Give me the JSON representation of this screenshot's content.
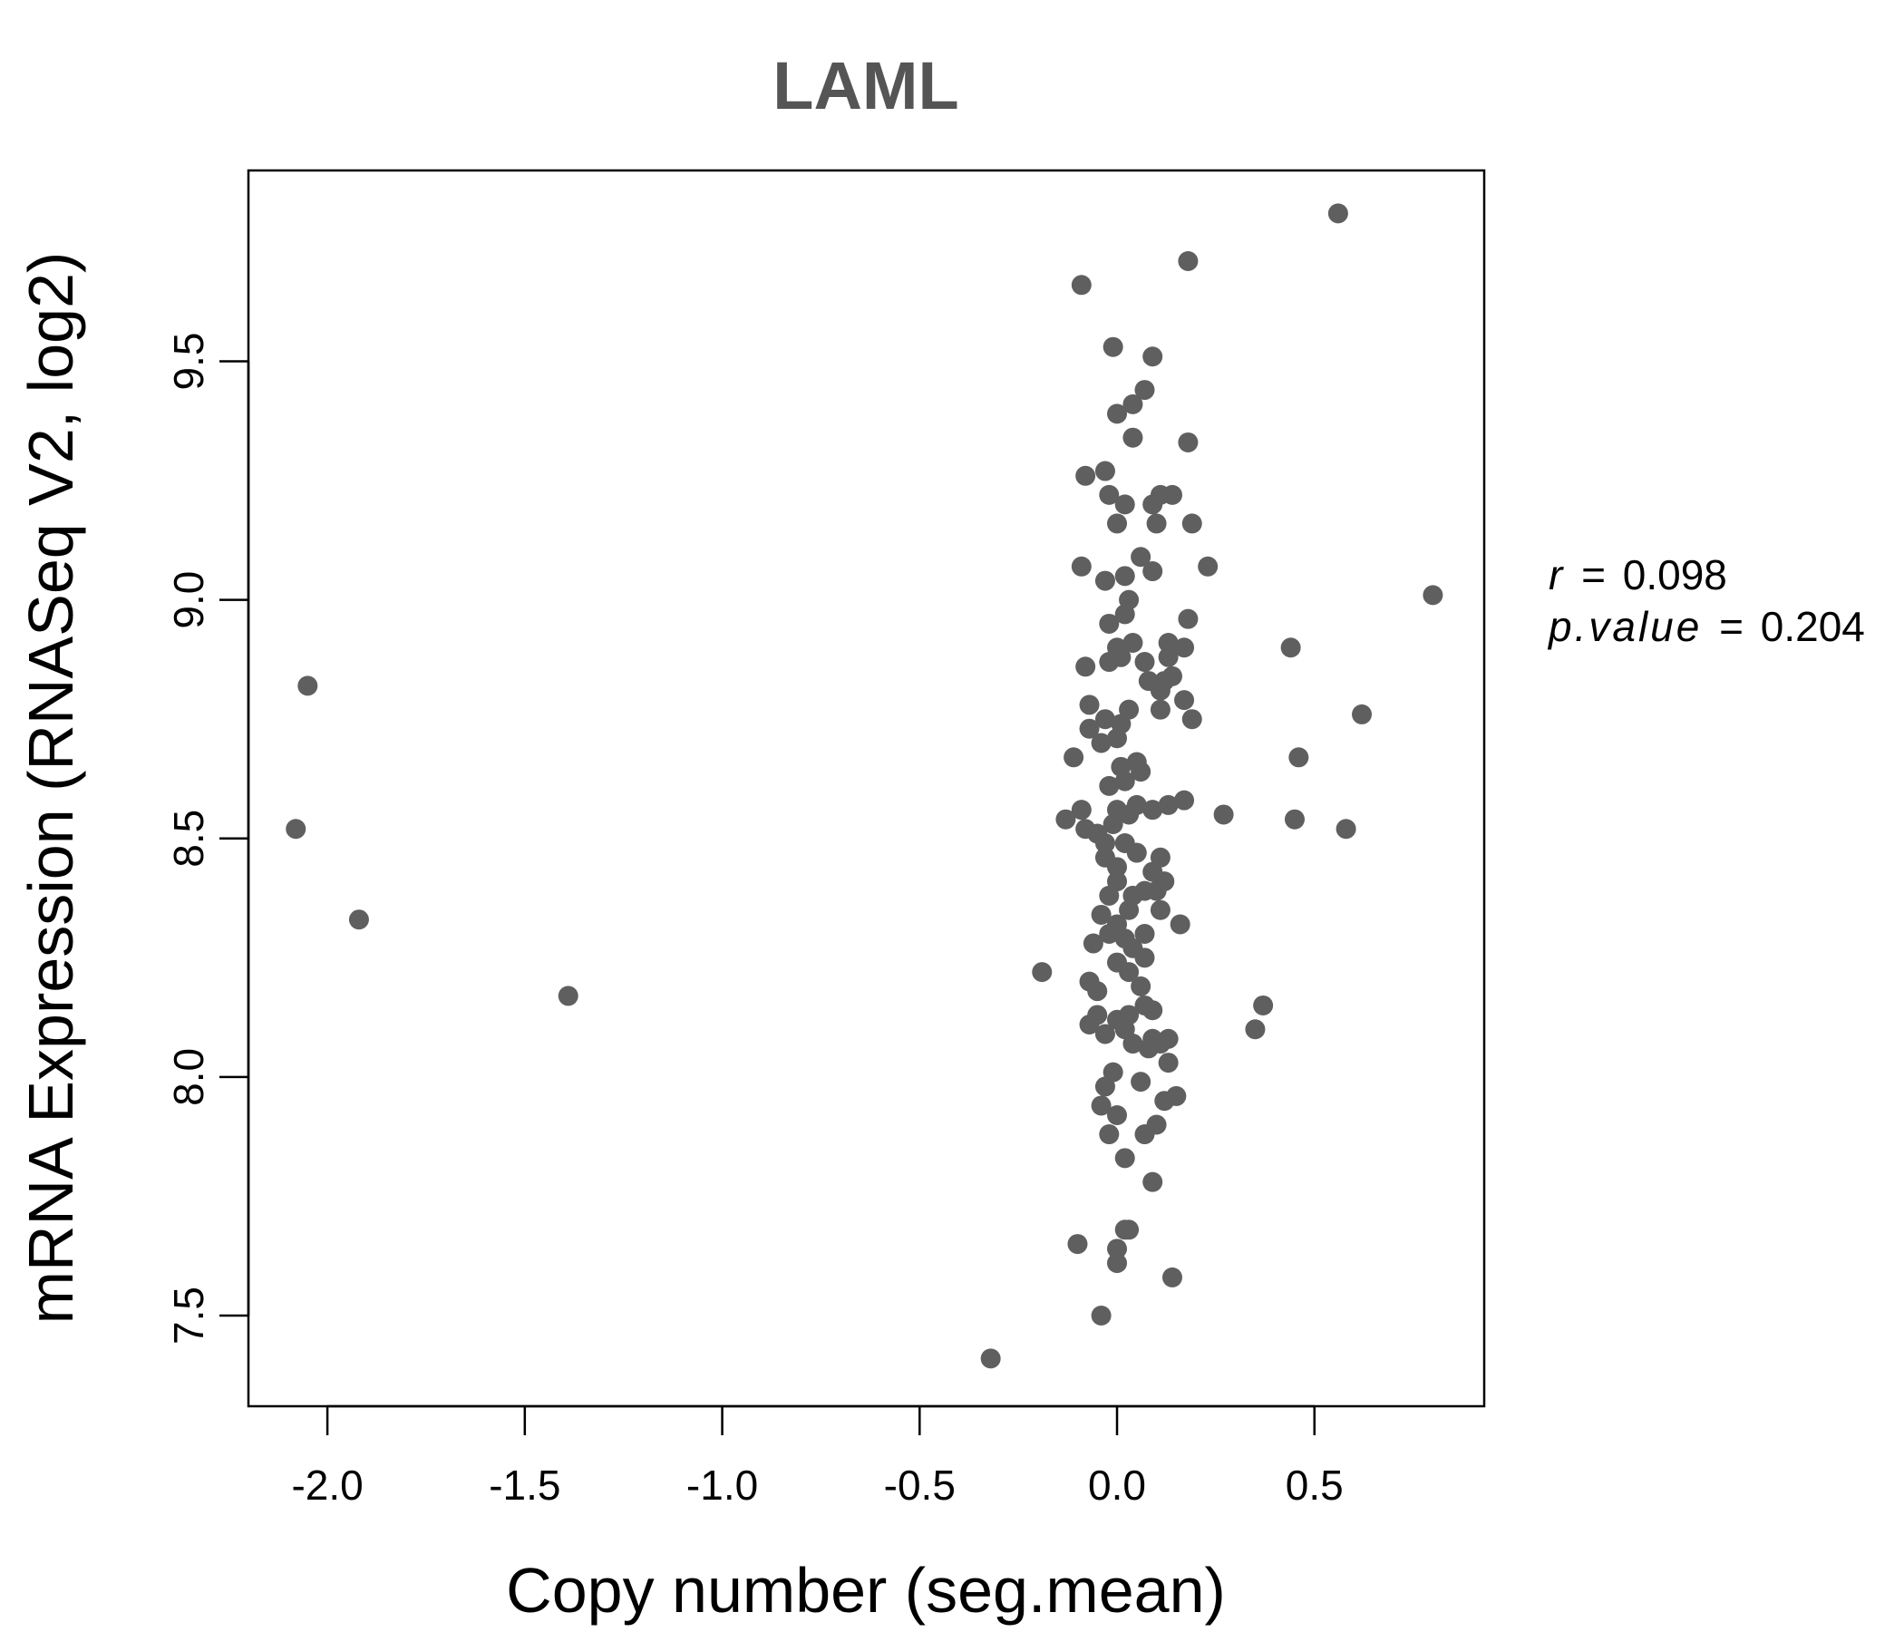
{
  "chart_data": {
    "type": "scatter",
    "title": "LAML",
    "xlabel": "Copy number (seg.mean)",
    "ylabel": "mRNA Expression (RNASeq V2, log2)",
    "xlim": [
      -2.2,
      0.93
    ],
    "ylim": [
      7.31,
      9.9
    ],
    "xticks": [
      -2.0,
      -1.5,
      -1.0,
      -0.5,
      0.0,
      0.5
    ],
    "xtick_labels": [
      "-2.0",
      "-1.5",
      "-1.0",
      "-0.5",
      "0.0",
      "0.5"
    ],
    "yticks": [
      7.5,
      8.0,
      8.5,
      9.0,
      9.5
    ],
    "ytick_labels": [
      "7.5",
      "8.0",
      "8.5",
      "9.0",
      "9.5"
    ],
    "grid": false,
    "point_color": "#5f5f5f",
    "stats": {
      "r_label": "r",
      "r_value": "0.098",
      "p_label": "p.value",
      "p_value": "0.204"
    },
    "points": [
      [
        -2.05,
        8.82
      ],
      [
        -2.08,
        8.52
      ],
      [
        -1.92,
        8.33
      ],
      [
        -1.39,
        8.17
      ],
      [
        -0.32,
        7.41
      ],
      [
        -0.19,
        8.22
      ],
      [
        -0.04,
        7.5
      ],
      [
        -0.1,
        7.65
      ],
      [
        0.0,
        7.61
      ],
      [
        0.0,
        7.64
      ],
      [
        0.02,
        7.68
      ],
      [
        0.03,
        7.68
      ],
      [
        0.14,
        7.58
      ],
      [
        0.09,
        7.78
      ],
      [
        0.02,
        7.83
      ],
      [
        -0.02,
        7.88
      ],
      [
        0.07,
        7.88
      ],
      [
        0.1,
        7.9
      ],
      [
        -0.04,
        7.94
      ],
      [
        0.0,
        7.92
      ],
      [
        0.12,
        7.95
      ],
      [
        0.15,
        7.96
      ],
      [
        0.06,
        7.99
      ],
      [
        -0.03,
        7.98
      ],
      [
        -0.01,
        8.01
      ],
      [
        0.13,
        8.03
      ],
      [
        0.08,
        8.06
      ],
      [
        0.04,
        8.07
      ],
      [
        0.09,
        8.08
      ],
      [
        0.11,
        8.07
      ],
      [
        0.13,
        8.08
      ],
      [
        -0.03,
        8.09
      ],
      [
        0.02,
        8.1
      ],
      [
        -0.07,
        8.11
      ],
      [
        0.0,
        8.12
      ],
      [
        -0.05,
        8.13
      ],
      [
        0.03,
        8.13
      ],
      [
        0.07,
        8.15
      ],
      [
        0.09,
        8.14
      ],
      [
        0.35,
        8.1
      ],
      [
        0.37,
        8.15
      ],
      [
        -0.07,
        8.2
      ],
      [
        -0.05,
        8.18
      ],
      [
        0.03,
        8.22
      ],
      [
        0.06,
        8.19
      ],
      [
        0.0,
        8.24
      ],
      [
        0.04,
        8.27
      ],
      [
        0.07,
        8.25
      ],
      [
        -0.06,
        8.28
      ],
      [
        -0.02,
        8.3
      ],
      [
        0.02,
        8.29
      ],
      [
        0.07,
        8.3
      ],
      [
        0.0,
        8.32
      ],
      [
        -0.04,
        8.34
      ],
      [
        0.03,
        8.35
      ],
      [
        0.11,
        8.35
      ],
      [
        0.16,
        8.32
      ],
      [
        -0.02,
        8.38
      ],
      [
        0.0,
        8.41
      ],
      [
        0.04,
        8.38
      ],
      [
        0.07,
        8.39
      ],
      [
        0.1,
        8.39
      ],
      [
        0.12,
        8.41
      ],
      [
        0.09,
        8.43
      ],
      [
        0.11,
        8.46
      ],
      [
        0.05,
        8.47
      ],
      [
        -0.03,
        8.46
      ],
      [
        0.0,
        8.44
      ],
      [
        0.02,
        8.49
      ],
      [
        -0.05,
        8.51
      ],
      [
        -0.08,
        8.52
      ],
      [
        -0.03,
        8.49
      ],
      [
        -0.01,
        8.53
      ],
      [
        0.0,
        8.56
      ],
      [
        0.03,
        8.55
      ],
      [
        0.05,
        8.57
      ],
      [
        0.09,
        8.56
      ],
      [
        0.13,
        8.57
      ],
      [
        0.17,
        8.58
      ],
      [
        -0.13,
        8.54
      ],
      [
        -0.09,
        8.56
      ],
      [
        0.27,
        8.55
      ],
      [
        0.45,
        8.54
      ],
      [
        0.58,
        8.52
      ],
      [
        -0.02,
        8.61
      ],
      [
        0.02,
        8.62
      ],
      [
        0.06,
        8.64
      ],
      [
        0.05,
        8.66
      ],
      [
        0.01,
        8.65
      ],
      [
        -0.11,
        8.67
      ],
      [
        0.46,
        8.67
      ],
      [
        -0.04,
        8.7
      ],
      [
        0.0,
        8.71
      ],
      [
        -0.07,
        8.73
      ],
      [
        -0.03,
        8.75
      ],
      [
        0.01,
        8.74
      ],
      [
        0.03,
        8.77
      ],
      [
        -0.07,
        8.78
      ],
      [
        0.11,
        8.77
      ],
      [
        0.17,
        8.79
      ],
      [
        0.19,
        8.75
      ],
      [
        0.62,
        8.76
      ],
      [
        0.08,
        8.83
      ],
      [
        0.12,
        8.83
      ],
      [
        0.14,
        8.84
      ],
      [
        0.11,
        8.81
      ],
      [
        -0.08,
        8.86
      ],
      [
        -0.02,
        8.87
      ],
      [
        0.01,
        8.88
      ],
      [
        0.07,
        8.87
      ],
      [
        0.13,
        8.88
      ],
      [
        0.0,
        8.9
      ],
      [
        0.04,
        8.91
      ],
      [
        0.13,
        8.91
      ],
      [
        0.17,
        8.9
      ],
      [
        0.44,
        8.9
      ],
      [
        -0.02,
        8.95
      ],
      [
        0.02,
        8.97
      ],
      [
        0.03,
        9.0
      ],
      [
        0.18,
        8.96
      ],
      [
        0.8,
        9.01
      ],
      [
        -0.03,
        9.04
      ],
      [
        0.02,
        9.05
      ],
      [
        -0.09,
        9.07
      ],
      [
        0.09,
        9.06
      ],
      [
        0.23,
        9.07
      ],
      [
        0.06,
        9.09
      ],
      [
        0.0,
        9.16
      ],
      [
        0.1,
        9.16
      ],
      [
        0.19,
        9.16
      ],
      [
        -0.02,
        9.22
      ],
      [
        0.02,
        9.2
      ],
      [
        0.09,
        9.2
      ],
      [
        0.11,
        9.22
      ],
      [
        0.14,
        9.22
      ],
      [
        -0.08,
        9.26
      ],
      [
        -0.03,
        9.27
      ],
      [
        0.18,
        9.33
      ],
      [
        0.04,
        9.34
      ],
      [
        0.0,
        9.39
      ],
      [
        0.04,
        9.41
      ],
      [
        0.07,
        9.44
      ],
      [
        -0.01,
        9.53
      ],
      [
        0.09,
        9.51
      ],
      [
        -0.09,
        9.66
      ],
      [
        0.18,
        9.71
      ],
      [
        0.56,
        9.81
      ]
    ]
  }
}
